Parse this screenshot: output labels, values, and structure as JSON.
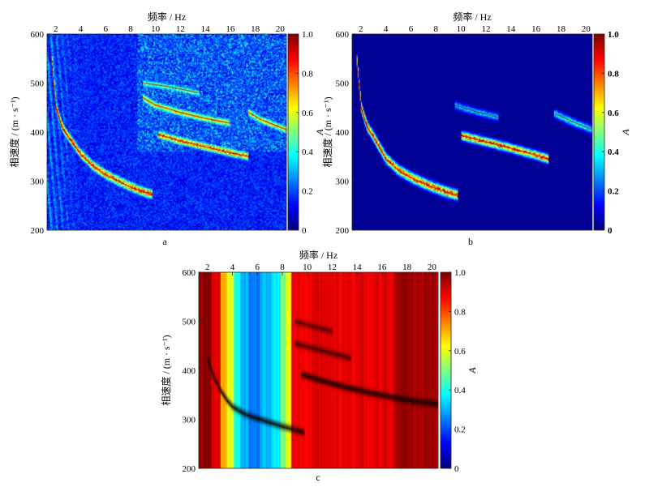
{
  "chart_data": [
    {
      "type": "heatmap",
      "panel_label": "a",
      "xlabel": "频率 / Hz",
      "ylabel": "相速度 / (m · s⁻¹)",
      "xlim": [
        1.3,
        20.5
      ],
      "ylim": [
        200,
        600
      ],
      "xticks": [
        2,
        4,
        6,
        8,
        10,
        12,
        14,
        16,
        18,
        20
      ],
      "yticks": [
        200,
        300,
        400,
        500,
        600
      ],
      "colorbar": {
        "label": "A",
        "min": 0,
        "max": 1.0,
        "ticks": [
          "0",
          "0.2",
          "0.4",
          "0.6",
          "0.8",
          "1.0"
        ],
        "colormap": "jet"
      },
      "background_level": 0.15,
      "dispersion_curves": [
        {
          "name": "fundamental",
          "points": [
            [
              1.6,
              560
            ],
            [
              2.0,
              450
            ],
            [
              2.5,
              410
            ],
            [
              3.0,
              390
            ],
            [
              4.0,
              355
            ],
            [
              5.0,
              330
            ],
            [
              6.0,
              313
            ],
            [
              7.0,
              300
            ],
            [
              8.0,
              288
            ],
            [
              9.0,
              278
            ],
            [
              9.8,
              272
            ]
          ],
          "amplitude": 1.0
        },
        {
          "name": "higher-1",
          "points": [
            [
              10.2,
              395
            ],
            [
              12.0,
              382
            ],
            [
              14.0,
              370
            ],
            [
              16.0,
              358
            ],
            [
              17.5,
              350
            ]
          ],
          "amplitude": 0.95
        },
        {
          "name": "higher-2",
          "points": [
            [
              9.0,
              470
            ],
            [
              10.0,
              455
            ],
            [
              12.0,
              440
            ],
            [
              14.0,
              428
            ],
            [
              16.0,
              418
            ]
          ],
          "amplitude": 0.8
        },
        {
          "name": "higher-3",
          "points": [
            [
              9.0,
              500
            ],
            [
              10.5,
              495
            ],
            [
              12.0,
              488
            ],
            [
              13.5,
              480
            ]
          ],
          "amplitude": 0.6
        },
        {
          "name": "higher-4",
          "points": [
            [
              17.5,
              440
            ],
            [
              18.5,
              425
            ],
            [
              19.5,
              415
            ],
            [
              20.5,
              405
            ]
          ],
          "amplitude": 0.8
        }
      ]
    },
    {
      "type": "heatmap",
      "panel_label": "b",
      "xlabel": "频率 / Hz",
      "ylabel": "相速度 / (m · s⁻¹)",
      "xlim": [
        1.3,
        20.5
      ],
      "ylim": [
        200,
        600
      ],
      "xticks": [
        2,
        4,
        6,
        8,
        10,
        12,
        14,
        16,
        18,
        20
      ],
      "yticks": [
        200,
        300,
        400,
        500,
        600
      ],
      "colorbar": {
        "label": "A",
        "min": 0,
        "max": 1.0,
        "ticks": [
          "0",
          "0.2",
          "0.4",
          "0.6",
          "0.8",
          "1.0"
        ],
        "colormap": "jet"
      },
      "background_level": 0.0,
      "dispersion_curves": [
        {
          "name": "fundamental",
          "points": [
            [
              1.6,
              560
            ],
            [
              2.0,
              450
            ],
            [
              2.5,
              410
            ],
            [
              3.0,
              390
            ],
            [
              4.0,
              345
            ],
            [
              5.0,
              322
            ],
            [
              6.0,
              307
            ],
            [
              7.0,
              295
            ],
            [
              8.0,
              285
            ],
            [
              9.0,
              276
            ],
            [
              9.8,
              270
            ]
          ],
          "amplitude": 1.0
        },
        {
          "name": "higher-1",
          "points": [
            [
              10.0,
              393
            ],
            [
              12.0,
              380
            ],
            [
              14.0,
              367
            ],
            [
              16.0,
              353
            ],
            [
              17.0,
              345
            ]
          ],
          "amplitude": 1.0
        },
        {
          "name": "higher-2",
          "points": [
            [
              9.5,
              455
            ],
            [
              11.0,
              443
            ],
            [
              13.0,
              430
            ]
          ],
          "amplitude": 0.4
        },
        {
          "name": "higher-4",
          "points": [
            [
              17.5,
              438
            ],
            [
              19.0,
              420
            ],
            [
              20.5,
              405
            ]
          ],
          "amplitude": 0.5
        }
      ]
    },
    {
      "type": "heatmap",
      "panel_label": "c",
      "xlabel": "频率 / Hz",
      "ylabel": "相速度 / (m · s⁻¹)",
      "xlim": [
        1.3,
        20.5
      ],
      "ylim": [
        200,
        600
      ],
      "xticks": [
        2,
        4,
        6,
        8,
        10,
        12,
        14,
        16,
        18,
        20
      ],
      "yticks": [
        200,
        300,
        400,
        500,
        600
      ],
      "colorbar": {
        "label": "A",
        "min": 0,
        "max": 1.0,
        "ticks": [
          "0",
          "0.2",
          "0.4",
          "0.6",
          "0.8",
          "1.0"
        ],
        "colormap": "jet"
      },
      "column_levels": [
        {
          "f_start": 1.3,
          "f_end": 2.3,
          "level": 0.98
        },
        {
          "f_start": 2.3,
          "f_end": 3.0,
          "level": 0.9
        },
        {
          "f_start": 3.0,
          "f_end": 3.5,
          "level": 0.72
        },
        {
          "f_start": 3.5,
          "f_end": 4.1,
          "level": 0.6
        },
        {
          "f_start": 4.1,
          "f_end": 4.6,
          "level": 0.4
        },
        {
          "f_start": 4.6,
          "f_end": 5.3,
          "level": 0.3
        },
        {
          "f_start": 5.3,
          "f_end": 6.2,
          "level": 0.24
        },
        {
          "f_start": 6.2,
          "f_end": 7.1,
          "level": 0.3
        },
        {
          "f_start": 7.1,
          "f_end": 7.8,
          "level": 0.36
        },
        {
          "f_start": 7.8,
          "f_end": 8.3,
          "level": 0.48
        },
        {
          "f_start": 8.3,
          "f_end": 8.7,
          "level": 0.62
        },
        {
          "f_start": 8.7,
          "f_end": 17.0,
          "level": 0.9
        },
        {
          "f_start": 17.0,
          "f_end": 20.5,
          "level": 0.97
        }
      ],
      "dispersion_curves": [
        {
          "name": "fundamental",
          "points": [
            [
              2.0,
              420
            ],
            [
              2.5,
              385
            ],
            [
              3.0,
              360
            ],
            [
              3.5,
              340
            ],
            [
              4.0,
              325
            ],
            [
              5.0,
              310
            ],
            [
              6.0,
              301
            ],
            [
              7.0,
              293
            ],
            [
              8.0,
              285
            ],
            [
              9.0,
              278
            ],
            [
              9.8,
              272
            ]
          ],
          "amplitude": 1.0
        },
        {
          "name": "higher-1",
          "points": [
            [
              9.5,
              392
            ],
            [
              11.0,
              380
            ],
            [
              13.0,
              366
            ],
            [
              15.0,
              354
            ],
            [
              17.0,
              344
            ],
            [
              18.5,
              337
            ],
            [
              20.5,
              331
            ]
          ],
          "amplitude": 1.0
        },
        {
          "name": "higher-2",
          "points": [
            [
              9.0,
              455
            ],
            [
              10.5,
              445
            ],
            [
              12.0,
              435
            ],
            [
              13.5,
              425
            ]
          ],
          "amplitude": 0.7
        },
        {
          "name": "higher-3",
          "points": [
            [
              9.0,
              500
            ],
            [
              10.5,
              490
            ],
            [
              12.0,
              480
            ]
          ],
          "amplitude": 0.6
        }
      ]
    }
  ]
}
